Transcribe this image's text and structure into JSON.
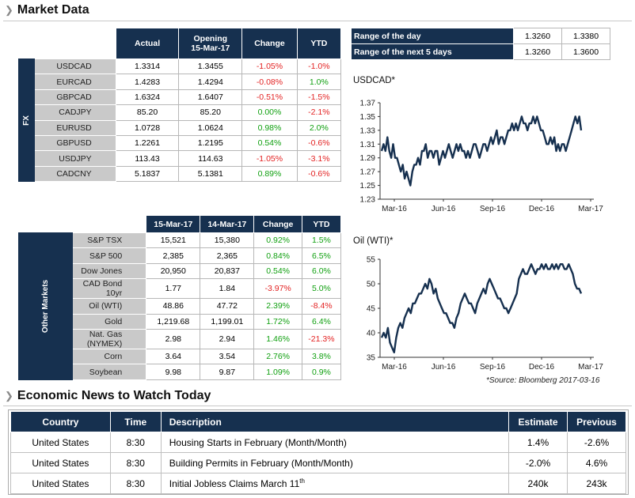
{
  "market_title": "Market Data",
  "fx": {
    "sidebar": "FX",
    "headers": [
      "Actual",
      "Opening",
      "15-Mar-17",
      "Change",
      "YTD"
    ],
    "rows": [
      {
        "label": "USDCAD",
        "actual": "1.3314",
        "opening": "1.3455",
        "change": "-1.05%",
        "ytd": "-1.0%",
        "cs": "neg",
        "ys": "neg"
      },
      {
        "label": "EURCAD",
        "actual": "1.4283",
        "opening": "1.4294",
        "change": "-0.08%",
        "ytd": "1.0%",
        "cs": "neg",
        "ys": "pos"
      },
      {
        "label": "GBPCAD",
        "actual": "1.6324",
        "opening": "1.6407",
        "change": "-0.51%",
        "ytd": "-1.5%",
        "cs": "neg",
        "ys": "neg"
      },
      {
        "label": "CADJPY",
        "actual": "85.20",
        "opening": "85.20",
        "change": "0.00%",
        "ytd": "-2.1%",
        "cs": "pos",
        "ys": "neg"
      },
      {
        "label": "EURUSD",
        "actual": "1.0728",
        "opening": "1.0624",
        "change": "0.98%",
        "ytd": "2.0%",
        "cs": "pos",
        "ys": "pos"
      },
      {
        "label": "GBPUSD",
        "actual": "1.2261",
        "opening": "1.2195",
        "change": "0.54%",
        "ytd": "-0.6%",
        "cs": "pos",
        "ys": "neg"
      },
      {
        "label": "USDJPY",
        "actual": "113.43",
        "opening": "114.63",
        "change": "-1.05%",
        "ytd": "-3.1%",
        "cs": "neg",
        "ys": "neg"
      },
      {
        "label": "CADCNY",
        "actual": "5.1837",
        "opening": "5.1381",
        "change": "0.89%",
        "ytd": "-0.6%",
        "cs": "pos",
        "ys": "neg"
      }
    ]
  },
  "other": {
    "sidebar": "Other Markets",
    "headers": [
      "15-Mar-17",
      "14-Mar-17",
      "Change",
      "YTD"
    ],
    "rows": [
      {
        "label": "S&P TSX",
        "a": "15,521",
        "b": "15,380",
        "change": "0.92%",
        "ytd": "1.5%",
        "cs": "pos",
        "ys": "pos"
      },
      {
        "label": "S&P 500",
        "a": "2,385",
        "b": "2,365",
        "change": "0.84%",
        "ytd": "6.5%",
        "cs": "pos",
        "ys": "pos"
      },
      {
        "label": "Dow Jones",
        "a": "20,950",
        "b": "20,837",
        "change": "0.54%",
        "ytd": "6.0%",
        "cs": "pos",
        "ys": "pos"
      },
      {
        "label": "CAD Bond 10yr",
        "a": "1.77",
        "b": "1.84",
        "change": "-3.97%",
        "ytd": "5.0%",
        "cs": "neg",
        "ys": "pos"
      },
      {
        "label": "Oil (WTI)",
        "a": "48.86",
        "b": "47.72",
        "change": "2.39%",
        "ytd": "-8.4%",
        "cs": "pos",
        "ys": "neg"
      },
      {
        "label": "Gold",
        "a": "1,219.68",
        "b": "1,199.01",
        "change": "1.72%",
        "ytd": "6.4%",
        "cs": "pos",
        "ys": "pos"
      },
      {
        "label": "Nat. Gas (NYMEX)",
        "a": "2.98",
        "b": "2.94",
        "change": "1.46%",
        "ytd": "-21.3%",
        "cs": "pos",
        "ys": "neg"
      },
      {
        "label": "Corn",
        "a": "3.64",
        "b": "3.54",
        "change": "2.76%",
        "ytd": "3.8%",
        "cs": "pos",
        "ys": "pos"
      },
      {
        "label": "Soybean",
        "a": "9.98",
        "b": "9.87",
        "change": "1.09%",
        "ytd": "0.9%",
        "cs": "pos",
        "ys": "pos"
      }
    ]
  },
  "range": [
    {
      "label": "Range of the day",
      "low": "1.3260",
      "high": "1.3380"
    },
    {
      "label": "Range of the next 5 days",
      "low": "1.3260",
      "high": "1.3600"
    }
  ],
  "source": "*Source: Bloomberg  2017-03-16",
  "chart_data": [
    {
      "type": "line",
      "title": "USDCAD*",
      "xlabel": "",
      "ylabel": "",
      "color": "#16304f",
      "ylim": [
        1.23,
        1.37
      ],
      "yticks": [
        "1.37",
        "1.35",
        "1.33",
        "1.31",
        "1.29",
        "1.27",
        "1.25",
        "1.23"
      ],
      "xticks": [
        "Mar-16",
        "Jun-16",
        "Sep-16",
        "Dec-16",
        "Mar-17"
      ],
      "values": [
        1.3,
        1.31,
        1.3,
        1.32,
        1.3,
        1.29,
        1.31,
        1.29,
        1.29,
        1.28,
        1.27,
        1.28,
        1.26,
        1.27,
        1.26,
        1.25,
        1.27,
        1.28,
        1.28,
        1.29,
        1.28,
        1.3,
        1.3,
        1.31,
        1.29,
        1.3,
        1.3,
        1.29,
        1.3,
        1.3,
        1.28,
        1.29,
        1.3,
        1.29,
        1.3,
        1.31,
        1.3,
        1.29,
        1.3,
        1.31,
        1.3,
        1.31,
        1.3,
        1.3,
        1.29,
        1.3,
        1.29,
        1.3,
        1.31,
        1.31,
        1.3,
        1.29,
        1.3,
        1.31,
        1.31,
        1.3,
        1.31,
        1.32,
        1.31,
        1.32,
        1.33,
        1.31,
        1.32,
        1.32,
        1.31,
        1.32,
        1.33,
        1.33,
        1.34,
        1.33,
        1.34,
        1.33,
        1.34,
        1.35,
        1.34,
        1.34,
        1.33,
        1.34,
        1.34,
        1.35,
        1.34,
        1.35,
        1.34,
        1.33,
        1.33,
        1.32,
        1.31,
        1.31,
        1.32,
        1.31,
        1.32,
        1.3,
        1.31,
        1.3,
        1.31,
        1.31,
        1.3,
        1.31,
        1.32,
        1.33,
        1.34,
        1.35,
        1.34,
        1.35,
        1.33
      ]
    },
    {
      "type": "line",
      "title": "Oil (WTI)*",
      "xlabel": "",
      "ylabel": "",
      "color": "#16304f",
      "ylim": [
        35,
        55
      ],
      "yticks": [
        "55",
        "50",
        "45",
        "40",
        "35"
      ],
      "xticks": [
        "Mar-16",
        "Jun-16",
        "Sep-16",
        "Dec-16",
        "Mar-17"
      ],
      "values": [
        39,
        40,
        39,
        41,
        38,
        37,
        36,
        39,
        41,
        42,
        41,
        43,
        44,
        45,
        44,
        46,
        46,
        47,
        48,
        48,
        49,
        50,
        49,
        51,
        50,
        48,
        49,
        47,
        46,
        45,
        44,
        44,
        43,
        42,
        42,
        41,
        43,
        44,
        46,
        47,
        48,
        47,
        46,
        46,
        45,
        44,
        46,
        47,
        48,
        49,
        48,
        50,
        51,
        50,
        49,
        48,
        47,
        47,
        46,
        45,
        45,
        44,
        45,
        46,
        47,
        48,
        51,
        52,
        53,
        52,
        52,
        53,
        54,
        53,
        52,
        53,
        53,
        54,
        53,
        54,
        53,
        53,
        54,
        53,
        54,
        53,
        54,
        54,
        53,
        53,
        54,
        53,
        52,
        50,
        49,
        49,
        48
      ]
    }
  ],
  "news": {
    "title": "Economic News to Watch Today",
    "headers": {
      "country": "Country",
      "time": "Time",
      "description": "Description",
      "estimate": "Estimate",
      "previous": "Previous"
    },
    "rows": [
      {
        "country": "United States",
        "time": "8:30",
        "desc": "Housing Starts in February (Month/Month)",
        "sup": "",
        "estimate": "1.4%",
        "previous": "-2.6%"
      },
      {
        "country": "United States",
        "time": "8:30",
        "desc": "Building Permits in February (Month/Month)",
        "sup": "",
        "estimate": "-2.0%",
        "previous": "4.6%"
      },
      {
        "country": "United States",
        "time": "8:30",
        "desc": "Initial Jobless Claims March 11",
        "sup": "th",
        "estimate": "240k",
        "previous": "243k"
      }
    ]
  }
}
